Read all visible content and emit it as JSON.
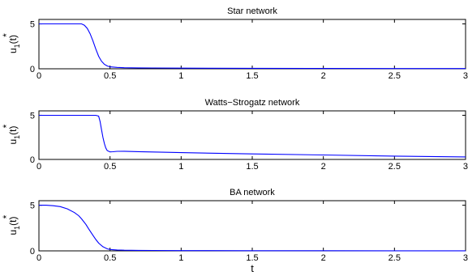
{
  "chart_data": [
    {
      "type": "line",
      "title": "Star network",
      "ylabel": "u",
      "ylabel_sup": "*",
      "ylabel_sub": "1",
      "ylabel_suffix": "(t)",
      "xlabel": "",
      "xlim": [
        0,
        3
      ],
      "ylim": [
        0,
        5.5
      ],
      "xticks": [
        0,
        0.5,
        1,
        1.5,
        2,
        2.5,
        3
      ],
      "xtick_labels": [
        "0",
        "0.5",
        "1",
        "1.5",
        "2",
        "2.5",
        "3"
      ],
      "yticks": [
        0,
        5
      ],
      "ytick_labels": [
        "0",
        "5"
      ],
      "series": [
        {
          "color": "#0000ff",
          "x": [
            0,
            0.05,
            0.1,
            0.15,
            0.2,
            0.25,
            0.3,
            0.32,
            0.34,
            0.36,
            0.38,
            0.4,
            0.42,
            0.44,
            0.46,
            0.48,
            0.5,
            0.55,
            0.6,
            0.7,
            0.8,
            1.0,
            1.5,
            2.0,
            2.5,
            3.0
          ],
          "y": [
            5,
            5,
            5,
            5,
            5,
            5,
            5,
            4.85,
            4.5,
            3.9,
            3.1,
            2.2,
            1.4,
            0.85,
            0.5,
            0.32,
            0.22,
            0.15,
            0.12,
            0.1,
            0.09,
            0.07,
            0.05,
            0.04,
            0.03,
            0.03
          ]
        }
      ]
    },
    {
      "type": "line",
      "title": "Watts−Strogatz network",
      "ylabel": "u",
      "ylabel_sup": "*",
      "ylabel_sub": "1",
      "ylabel_suffix": "(t)",
      "xlabel": "",
      "xlim": [
        0,
        3
      ],
      "ylim": [
        0,
        5.5
      ],
      "xticks": [
        0,
        0.5,
        1,
        1.5,
        2,
        2.5,
        3
      ],
      "xtick_labels": [
        "0",
        "0.5",
        "1",
        "1.5",
        "2",
        "2.5",
        "3"
      ],
      "yticks": [
        0,
        5
      ],
      "ytick_labels": [
        "0",
        "5"
      ],
      "series": [
        {
          "color": "#0000ff",
          "x": [
            0,
            0.1,
            0.2,
            0.3,
            0.4,
            0.42,
            0.43,
            0.44,
            0.45,
            0.46,
            0.47,
            0.48,
            0.5,
            0.52,
            0.55,
            0.6,
            0.7,
            0.8,
            1.0,
            1.5,
            2.0,
            2.5,
            3.0
          ],
          "y": [
            5,
            5,
            5,
            5,
            5,
            4.9,
            4.3,
            3.4,
            2.5,
            1.8,
            1.3,
            1.0,
            0.85,
            0.87,
            0.92,
            0.93,
            0.88,
            0.84,
            0.77,
            0.62,
            0.5,
            0.38,
            0.28
          ]
        }
      ]
    },
    {
      "type": "line",
      "title": "BA network",
      "ylabel": "u",
      "ylabel_sup": "*",
      "ylabel_sub": "1",
      "ylabel_suffix": "(t)",
      "xlabel": "t",
      "xlim": [
        0,
        3
      ],
      "ylim": [
        0,
        5.5
      ],
      "xticks": [
        0,
        0.5,
        1,
        1.5,
        2,
        2.5,
        3
      ],
      "xtick_labels": [
        "0",
        "0.5",
        "1",
        "1.5",
        "2",
        "2.5",
        "3"
      ],
      "yticks": [
        0,
        5
      ],
      "ytick_labels": [
        "0",
        "5"
      ],
      "series": [
        {
          "color": "#0000ff",
          "x": [
            0,
            0.05,
            0.1,
            0.15,
            0.2,
            0.25,
            0.28,
            0.3,
            0.33,
            0.35,
            0.38,
            0.4,
            0.42,
            0.45,
            0.48,
            0.5,
            0.55,
            0.6,
            0.7,
            0.8,
            1.0,
            1.5,
            2.0,
            2.5,
            3.0
          ],
          "y": [
            5,
            5,
            4.95,
            4.85,
            4.6,
            4.2,
            3.85,
            3.5,
            2.9,
            2.4,
            1.7,
            1.25,
            0.85,
            0.45,
            0.22,
            0.15,
            0.1,
            0.07,
            0.05,
            0.04,
            0.03,
            0.02,
            0.02,
            0.01,
            0.01
          ]
        }
      ]
    }
  ]
}
